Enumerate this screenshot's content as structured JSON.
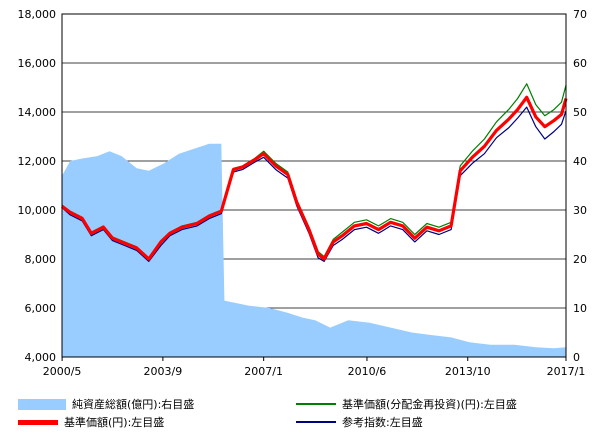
{
  "chart_data": {
    "type": "line",
    "x_ticks": [
      "2000/5",
      "2003/9",
      "2007/1",
      "2010/6",
      "2013/10",
      "2017/1"
    ],
    "y_left": {
      "min": 4000,
      "max": 18000,
      "ticks": [
        "4,000",
        "6,000",
        "8,000",
        "10,000",
        "12,000",
        "14,000",
        "16,000",
        "18,000"
      ]
    },
    "y_right": {
      "min": 0,
      "max": 70,
      "ticks": [
        "0",
        "10",
        "20",
        "30",
        "40",
        "50",
        "60",
        "70"
      ]
    },
    "grid": true,
    "legend_position": "bottom",
    "series": [
      {
        "name": "純資産総額(億円):右目盛",
        "kind": "area",
        "axis": "right",
        "color": "#99ccff",
        "x": [
          2000.33,
          2000.6,
          2001.0,
          2001.5,
          2001.9,
          2002.3,
          2002.8,
          2003.2,
          2003.7,
          2004.2,
          2004.7,
          2005.2,
          2005.6,
          2005.7,
          2006.5,
          2007.2,
          2007.8,
          2008.3,
          2008.7,
          2009.2,
          2009.8,
          2010.5,
          2011.2,
          2011.9,
          2012.5,
          2013.2,
          2013.8,
          2014.5,
          2015.3,
          2016.0,
          2016.6,
          2017.0
        ],
        "values": [
          37.0,
          40.0,
          40.5,
          41.0,
          42.0,
          41.0,
          38.5,
          38.0,
          39.5,
          41.5,
          42.5,
          43.5,
          43.5,
          11.5,
          10.5,
          10.0,
          9.0,
          8.0,
          7.5,
          6.0,
          7.5,
          7.0,
          6.0,
          5.0,
          4.5,
          4.0,
          3.0,
          2.5,
          2.5,
          2.0,
          1.8,
          2.0
        ]
      },
      {
        "name": "基準価額(分配金再投資)(円):左目盛",
        "kind": "line",
        "axis": "left",
        "color": "#008000",
        "x": [
          2000.33,
          2000.6,
          2001.0,
          2001.3,
          2001.7,
          2002.0,
          2002.4,
          2002.8,
          2003.2,
          2003.6,
          2003.9,
          2004.3,
          2004.8,
          2005.2,
          2005.6,
          2006.0,
          2006.3,
          2006.7,
          2007.0,
          2007.4,
          2007.8,
          2008.1,
          2008.5,
          2008.8,
          2009.0,
          2009.3,
          2009.6,
          2010.0,
          2010.4,
          2010.8,
          2011.2,
          2011.6,
          2012.0,
          2012.4,
          2012.8,
          2013.2,
          2013.5,
          2013.9,
          2014.3,
          2014.7,
          2015.1,
          2015.4,
          2015.7,
          2016.0,
          2016.3,
          2016.6,
          2016.85,
          2017.0
        ],
        "values": [
          10200,
          9950,
          9700,
          9100,
          9350,
          8900,
          8700,
          8500,
          8050,
          8750,
          9100,
          9350,
          9500,
          9800,
          10000,
          11700,
          11800,
          12100,
          12400,
          11900,
          11550,
          10400,
          9300,
          8300,
          8100,
          8800,
          9100,
          9500,
          9600,
          9350,
          9650,
          9500,
          9000,
          9450,
          9300,
          9500,
          11800,
          12400,
          12900,
          13600,
          14100,
          14550,
          15150,
          14300,
          13850,
          14100,
          14400,
          15100
        ]
      },
      {
        "name": "基準価額(円):左目盛",
        "kind": "line",
        "axis": "left",
        "color": "#ff0000",
        "x": [
          2000.33,
          2000.6,
          2001.0,
          2001.3,
          2001.7,
          2002.0,
          2002.4,
          2002.8,
          2003.2,
          2003.6,
          2003.9,
          2004.3,
          2004.8,
          2005.2,
          2005.6,
          2006.0,
          2006.3,
          2006.7,
          2007.0,
          2007.4,
          2007.8,
          2008.1,
          2008.5,
          2008.8,
          2009.0,
          2009.3,
          2009.6,
          2010.0,
          2010.4,
          2010.8,
          2011.2,
          2011.6,
          2012.0,
          2012.4,
          2012.8,
          2013.2,
          2013.5,
          2013.9,
          2014.3,
          2014.7,
          2015.1,
          2015.4,
          2015.7,
          2016.0,
          2016.3,
          2016.6,
          2016.85,
          2017.0
        ],
        "values": [
          10150,
          9900,
          9650,
          9050,
          9300,
          8850,
          8650,
          8450,
          8000,
          8700,
          9050,
          9300,
          9450,
          9750,
          9950,
          11650,
          11750,
          12050,
          12300,
          11800,
          11450,
          10300,
          9200,
          8200,
          8000,
          8700,
          8950,
          9350,
          9450,
          9200,
          9500,
          9350,
          8850,
          9300,
          9150,
          9350,
          11600,
          12150,
          12600,
          13250,
          13700,
          14100,
          14600,
          13800,
          13400,
          13650,
          13900,
          14550
        ]
      },
      {
        "name": "参考指数:左目盛",
        "kind": "line",
        "axis": "left",
        "color": "#000080",
        "x": [
          2000.33,
          2000.6,
          2001.0,
          2001.3,
          2001.7,
          2002.0,
          2002.4,
          2002.8,
          2003.2,
          2003.6,
          2003.9,
          2004.3,
          2004.8,
          2005.2,
          2005.6,
          2006.0,
          2006.3,
          2006.7,
          2007.0,
          2007.4,
          2007.8,
          2008.1,
          2008.5,
          2008.8,
          2009.0,
          2009.3,
          2009.6,
          2010.0,
          2010.4,
          2010.8,
          2011.2,
          2011.6,
          2012.0,
          2012.4,
          2012.8,
          2013.2,
          2013.5,
          2013.9,
          2014.3,
          2014.7,
          2015.1,
          2015.4,
          2015.7,
          2016.0,
          2016.3,
          2016.6,
          2016.85,
          2017.0
        ],
        "values": [
          10100,
          9800,
          9550,
          8950,
          9200,
          8750,
          8550,
          8350,
          7900,
          8550,
          8950,
          9200,
          9350,
          9650,
          9850,
          11550,
          11650,
          11950,
          12150,
          11650,
          11300,
          10150,
          9050,
          8050,
          7900,
          8550,
          8800,
          9200,
          9300,
          9050,
          9350,
          9200,
          8700,
          9150,
          9000,
          9200,
          11400,
          11900,
          12300,
          12950,
          13350,
          13750,
          14200,
          13400,
          12900,
          13200,
          13500,
          14050
        ]
      }
    ]
  }
}
